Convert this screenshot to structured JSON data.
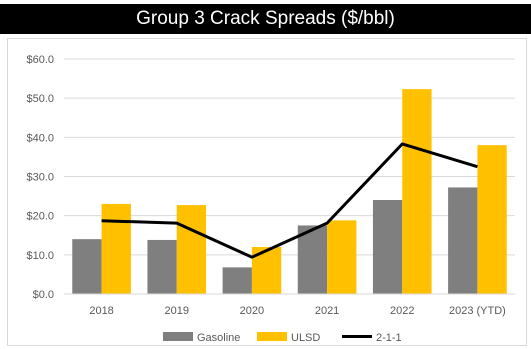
{
  "title": "Group 3 Crack Spreads ($/bbl)",
  "chart_data": {
    "type": "bar",
    "title": "Group 3 Crack Spreads ($/bbl)",
    "categories": [
      "2018",
      "2019",
      "2020",
      "2021",
      "2022",
      "2023 (YTD)"
    ],
    "ylim": [
      0,
      60
    ],
    "yticks": [
      0,
      10,
      20,
      30,
      40,
      50,
      60
    ],
    "ytick_labels": [
      "$0.0",
      "$10.0",
      "$20.0",
      "$30.0",
      "$40.0",
      "$50.0",
      "$60.0"
    ],
    "grid": true,
    "legend_position": "bottom",
    "series": [
      {
        "name": "Gasoline",
        "type": "bar",
        "color": "#7f7f7f",
        "values": [
          14.0,
          13.8,
          6.8,
          17.5,
          24.0,
          27.2
        ]
      },
      {
        "name": "ULSD",
        "type": "bar",
        "color": "#ffc000",
        "values": [
          23.0,
          22.7,
          12.0,
          18.8,
          52.3,
          38.0
        ]
      },
      {
        "name": "2-1-1",
        "type": "line",
        "color": "#000000",
        "values": [
          18.7,
          18.1,
          9.4,
          18.1,
          38.3,
          32.5
        ]
      }
    ]
  }
}
